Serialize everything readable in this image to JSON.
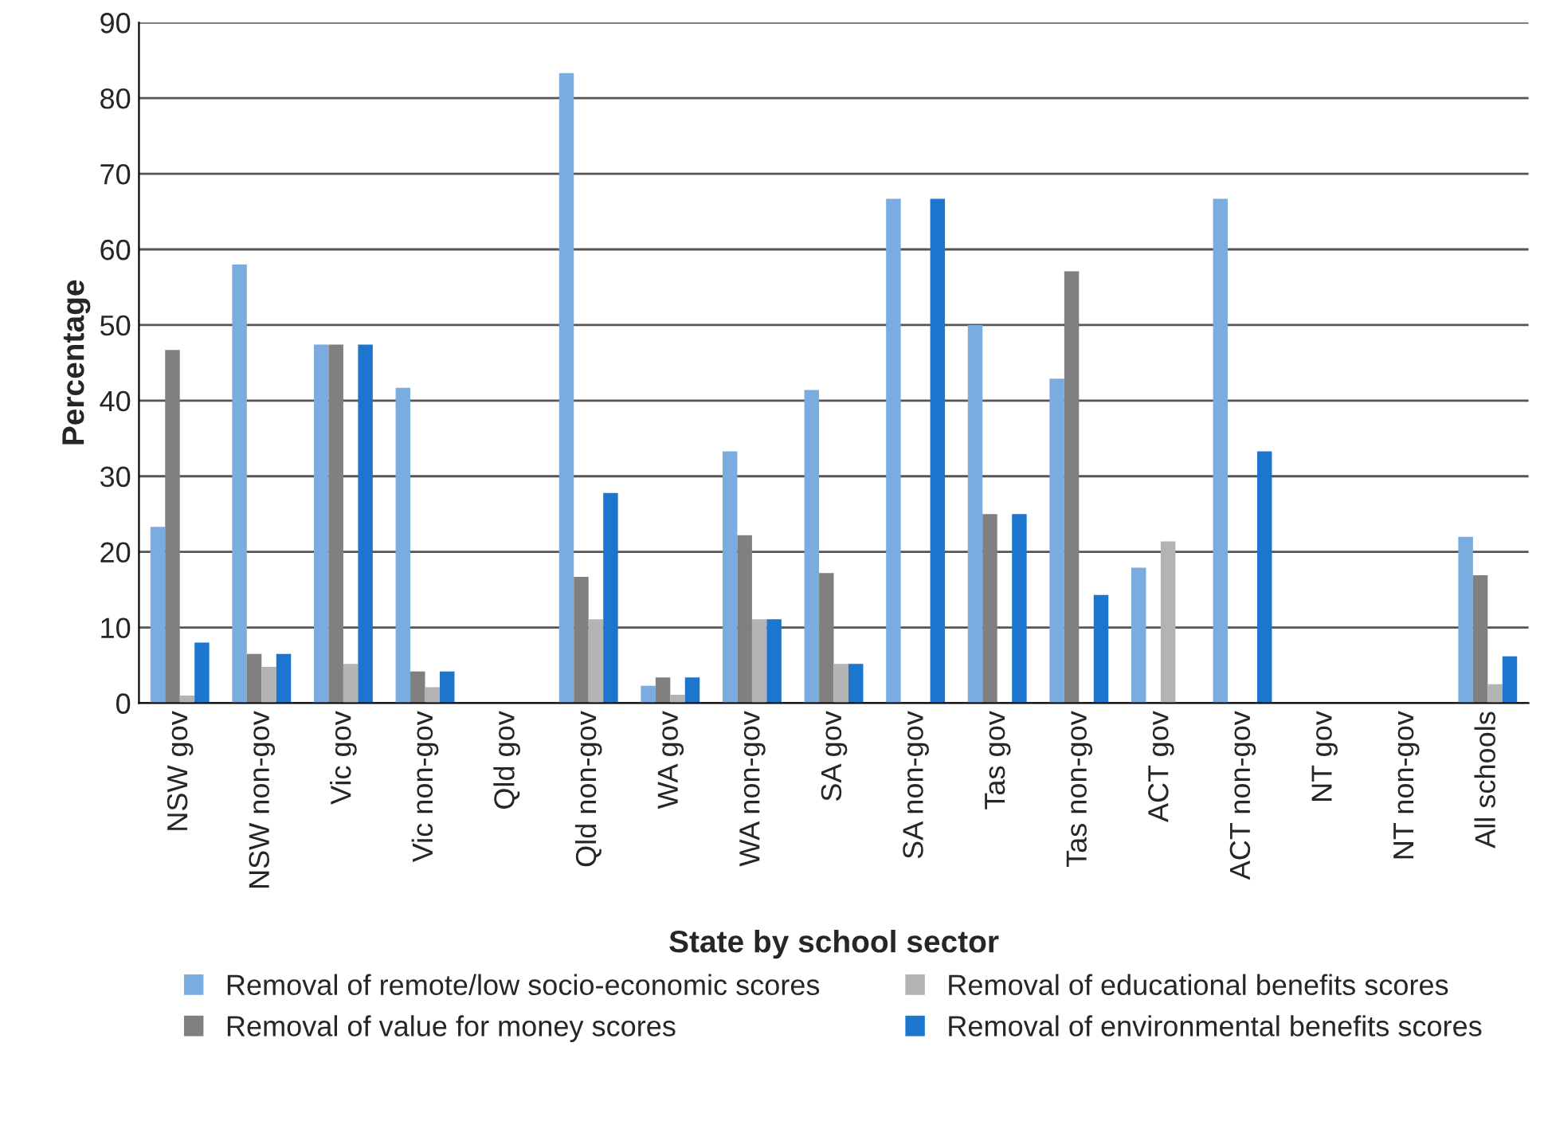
{
  "chart_data": {
    "type": "bar",
    "xlabel": "State by school sector",
    "ylabel": "Percentage",
    "categories": [
      "NSW gov",
      "NSW non-gov",
      "Vic gov",
      "Vic non-gov",
      "Qld gov",
      "Qld non-gov",
      "WA gov",
      "WA non-gov",
      "SA gov",
      "SA non-gov",
      "Tas gov",
      "Tas non-gov",
      "ACT gov",
      "ACT non-gov",
      "NT gov",
      "NT non-gov",
      "All schools"
    ],
    "series": [
      {
        "name": "Removal of remote/low socio-economic scores",
        "color": "#7aace0",
        "values": [
          23.3,
          58,
          47.4,
          41.7,
          0,
          83.3,
          2.3,
          33.3,
          41.4,
          66.7,
          50,
          42.9,
          17.9,
          66.7,
          0,
          0,
          22
        ]
      },
      {
        "name": "Removal of value for money scores",
        "color": "#808080",
        "values": [
          46.7,
          6.5,
          47.4,
          4.2,
          0,
          16.7,
          3.4,
          22.2,
          17.2,
          0,
          25,
          57.1,
          0,
          0,
          0,
          0,
          16.9
        ]
      },
      {
        "name": "Removal of educational benefits scores",
        "color": "#b3b3b3",
        "values": [
          1.0,
          4.8,
          5.2,
          2.1,
          0,
          11.1,
          1.1,
          11.1,
          5.2,
          0,
          0,
          0,
          21.4,
          0,
          0,
          0,
          2.5
        ]
      },
      {
        "name": "Removal of environmental benefits scores",
        "color": "#1c76ce",
        "values": [
          8,
          6.5,
          47.4,
          4.2,
          0,
          27.8,
          3.4,
          11.1,
          5.2,
          66.7,
          25,
          14.3,
          0,
          33.3,
          0,
          0,
          6.2
        ]
      }
    ],
    "ylim": [
      0,
      90
    ],
    "yticks": [
      0,
      10,
      20,
      30,
      40,
      50,
      60,
      70,
      80,
      90
    ],
    "grid": "y",
    "legend": "bottom"
  }
}
